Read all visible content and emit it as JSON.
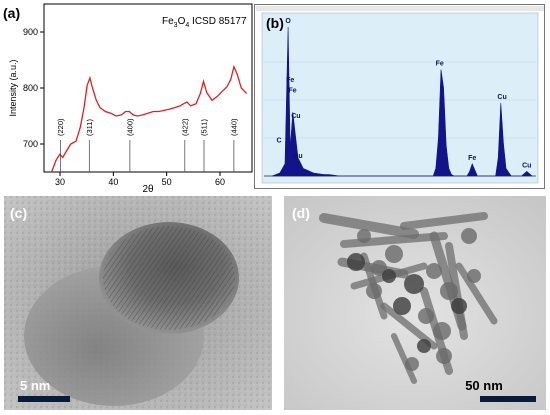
{
  "panels": {
    "a": {
      "label": "(a)",
      "reference": "Fe3O4 ICSD 85177",
      "ylabel": "Intensity (a.u.)",
      "xlabel": "2θ",
      "line_color": "#e02020"
    },
    "b": {
      "label": "(b)",
      "bg_color": "#dceff8",
      "bar_color": "#13148a"
    },
    "c": {
      "label": "(c)",
      "scale_text": "5 nm"
    },
    "d": {
      "label": "(d)",
      "scale_text": "50 nm"
    }
  },
  "chart_data": [
    {
      "type": "line",
      "title": "Fe3O4 ICSD 85177",
      "xlabel": "2θ",
      "ylabel": "Intensity (a.u.)",
      "xlim": [
        27,
        66
      ],
      "ylim": [
        650,
        950
      ],
      "xticks": [
        30,
        40,
        50,
        60
      ],
      "yticks": [
        700,
        800,
        900
      ],
      "grid": false,
      "series": [
        {
          "x": [
            27.5,
            28.5,
            29.3,
            30,
            30.5,
            31,
            32,
            33,
            33.8,
            34.5,
            35.1,
            35.6,
            36.1,
            36.8,
            37.5,
            38.5,
            39.5,
            40.5,
            41.5,
            42.3,
            43,
            43.7,
            44.5,
            45.5,
            46.5,
            47.5,
            48.5,
            49.5,
            50.5,
            51.5,
            52.5,
            53.2,
            53.8,
            54.5,
            55.5,
            56.3,
            56.9,
            57.5,
            58.5,
            59.5,
            60.5,
            61.3,
            62,
            62.6,
            63.2,
            64,
            65
          ],
          "y": [
            628,
            652,
            672,
            682,
            676,
            684,
            700,
            705,
            730,
            765,
            805,
            818,
            800,
            778,
            765,
            758,
            755,
            750,
            752,
            758,
            758,
            752,
            750,
            752,
            755,
            758,
            758,
            760,
            762,
            765,
            768,
            772,
            775,
            768,
            772,
            790,
            812,
            792,
            778,
            785,
            795,
            802,
            815,
            838,
            825,
            800,
            790
          ]
        }
      ],
      "peak_labels": [
        {
          "text": "(220)",
          "x": 30.1
        },
        {
          "text": "(311)",
          "x": 35.5
        },
        {
          "text": "(400)",
          "x": 43.1
        },
        {
          "text": "(422)",
          "x": 53.4
        },
        {
          "text": "(511)",
          "x": 57.0
        },
        {
          "text": "(440)",
          "x": 62.6
        }
      ]
    },
    {
      "type": "line",
      "title": "",
      "xlabel": "",
      "ylabel": "",
      "grid": true,
      "xlim": [
        0,
        10
      ],
      "ylim": [
        0,
        1
      ],
      "series": [
        {
          "x": [
            0.0,
            0.3,
            0.5,
            0.62,
            0.7,
            0.8,
            1.0,
            1.2,
            1.6,
            2.0,
            2.2,
            2.6,
            3.0,
            3.4,
            4.0,
            4.6,
            5.0,
            5.6,
            6.0,
            6.2,
            6.3,
            6.4,
            6.5,
            6.6,
            6.7,
            6.8,
            6.9,
            7.0,
            7.5,
            7.6,
            7.7,
            7.8,
            7.9,
            8.0,
            8.2,
            8.6,
            8.7,
            8.8,
            8.9,
            9.0,
            9.2,
            9.6,
            9.8,
            10.0
          ],
          "y": [
            0.0,
            0.02,
            0.08,
            0.98,
            0.18,
            0.42,
            0.12,
            0.05,
            0.02,
            0.01,
            0.01,
            0.0,
            0.0,
            0.0,
            0.0,
            0.0,
            0.0,
            0.0,
            0.0,
            0.0,
            0.05,
            0.25,
            0.7,
            0.58,
            0.2,
            0.05,
            0.01,
            0.0,
            0.0,
            0.03,
            0.08,
            0.04,
            0.0,
            0.0,
            0.0,
            0.0,
            0.12,
            0.48,
            0.22,
            0.05,
            0.0,
            0.0,
            0.03,
            0.0
          ]
        }
      ],
      "peak_labels": [
        {
          "text": "O",
          "x": 0.62
        },
        {
          "text": "C",
          "x": 0.27
        },
        {
          "text": "Fe",
          "x": 0.7
        },
        {
          "text": "Fe",
          "x": 0.79
        },
        {
          "text": "Cu",
          "x": 0.92
        },
        {
          "text": "Cu",
          "x": 1.0
        },
        {
          "text": "Fe",
          "x": 6.45
        },
        {
          "text": "Fe",
          "x": 7.7
        },
        {
          "text": "Cu",
          "x": 8.85
        },
        {
          "text": "Cu",
          "x": 9.8
        }
      ]
    }
  ]
}
